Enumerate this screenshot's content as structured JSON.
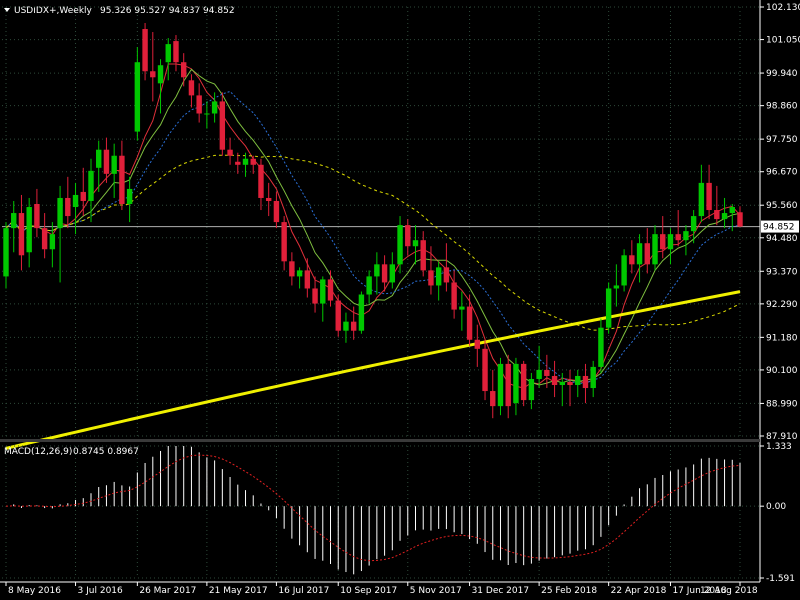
{
  "header": {
    "symbol": "USDIDX+,Weekly",
    "ohlc": "95.326 95.527 94.837 94.852"
  },
  "macd_header": {
    "label": "MACD(12,26,9)",
    "values": "0.8745 0.8967"
  },
  "colors": {
    "background": "#000000",
    "grid": "#2e4a3a",
    "bull": "#00c800",
    "bear": "#e0203a",
    "ma_fast": "#e0303a",
    "ma_mid": "#7fbf3f",
    "ma_long": "#2a6fd6",
    "ma_slow_dashed": "#d8d800",
    "ma_200": "#f0f000",
    "price_line": "#b0b0b0",
    "macd_hist": "#ffffff",
    "macd_signal": "#e02020"
  },
  "chart_data": [
    {
      "type": "candlestick",
      "title": "USDIDX+,Weekly",
      "x_tick_labels": [
        "8 May 2016",
        "3 Jul 2016",
        "26 Mar 2017",
        "21 May 2017",
        "16 Jul 2017",
        "10 Sep 2017",
        "5 Nov 2017",
        "31 Dec 2017",
        "25 Feb 2018",
        "22 Apr 2018",
        "17 Jun 2018",
        "12 Aug 2018"
      ],
      "y_tick_labels": [
        "102.130",
        "101.050",
        "99.940",
        "98.860",
        "97.750",
        "96.670",
        "95.560",
        "94.480",
        "93.370",
        "92.290",
        "91.180",
        "90.100",
        "88.990",
        "87.910"
      ],
      "ylim": [
        87.91,
        102.13
      ],
      "current_price": 94.852,
      "current_price_label": "94.852",
      "grid": true,
      "candles": [
        {
          "o": 93.2,
          "h": 95.0,
          "l": 92.8,
          "c": 94.8
        },
        {
          "o": 94.8,
          "h": 95.7,
          "l": 94.0,
          "c": 95.3
        },
        {
          "o": 95.3,
          "h": 95.9,
          "l": 93.4,
          "c": 93.9
        },
        {
          "o": 94.0,
          "h": 95.8,
          "l": 93.5,
          "c": 95.5
        },
        {
          "o": 95.6,
          "h": 96.1,
          "l": 94.5,
          "c": 94.8
        },
        {
          "o": 94.8,
          "h": 95.3,
          "l": 93.8,
          "c": 94.1
        },
        {
          "o": 94.1,
          "h": 95.0,
          "l": 93.5,
          "c": 94.6
        },
        {
          "o": 94.8,
          "h": 96.2,
          "l": 93.0,
          "c": 95.8
        },
        {
          "o": 95.8,
          "h": 96.5,
          "l": 94.8,
          "c": 95.2
        },
        {
          "o": 95.5,
          "h": 96.3,
          "l": 94.6,
          "c": 95.9
        },
        {
          "o": 96.0,
          "h": 96.8,
          "l": 95.2,
          "c": 95.7
        },
        {
          "o": 95.7,
          "h": 97.1,
          "l": 95.0,
          "c": 96.7
        },
        {
          "o": 96.8,
          "h": 97.7,
          "l": 96.0,
          "c": 97.4
        },
        {
          "o": 97.4,
          "h": 97.8,
          "l": 96.3,
          "c": 96.6
        },
        {
          "o": 96.6,
          "h": 97.6,
          "l": 95.8,
          "c": 97.2
        },
        {
          "o": 97.2,
          "h": 97.7,
          "l": 95.4,
          "c": 95.6
        },
        {
          "o": 95.6,
          "h": 96.5,
          "l": 95.0,
          "c": 96.1
        },
        {
          "o": 98.0,
          "h": 100.8,
          "l": 97.7,
          "c": 100.3
        },
        {
          "o": 101.4,
          "h": 101.6,
          "l": 99.7,
          "c": 100.0
        },
        {
          "o": 100.0,
          "h": 101.3,
          "l": 99.0,
          "c": 99.8
        },
        {
          "o": 99.6,
          "h": 100.4,
          "l": 98.6,
          "c": 100.2
        },
        {
          "o": 100.3,
          "h": 101.1,
          "l": 99.7,
          "c": 100.9
        },
        {
          "o": 101.0,
          "h": 101.2,
          "l": 100.0,
          "c": 100.3
        },
        {
          "o": 100.3,
          "h": 100.6,
          "l": 99.5,
          "c": 99.8
        },
        {
          "o": 99.7,
          "h": 99.9,
          "l": 98.8,
          "c": 99.2
        },
        {
          "o": 99.2,
          "h": 99.6,
          "l": 98.3,
          "c": 98.6
        },
        {
          "o": 98.6,
          "h": 99.0,
          "l": 98.1,
          "c": 98.6
        },
        {
          "o": 98.6,
          "h": 99.3,
          "l": 98.3,
          "c": 99.0
        },
        {
          "o": 99.0,
          "h": 99.3,
          "l": 97.2,
          "c": 97.4
        },
        {
          "o": 97.4,
          "h": 97.8,
          "l": 96.9,
          "c": 97.2
        },
        {
          "o": 97.0,
          "h": 97.3,
          "l": 96.6,
          "c": 96.9
        },
        {
          "o": 96.9,
          "h": 97.3,
          "l": 96.5,
          "c": 97.1
        },
        {
          "o": 97.1,
          "h": 97.2,
          "l": 96.6,
          "c": 96.9
        },
        {
          "o": 96.9,
          "h": 97.1,
          "l": 95.4,
          "c": 95.8
        },
        {
          "o": 95.8,
          "h": 96.3,
          "l": 95.2,
          "c": 95.7
        },
        {
          "o": 95.7,
          "h": 96.0,
          "l": 94.8,
          "c": 95.0
        },
        {
          "o": 95.0,
          "h": 95.2,
          "l": 93.4,
          "c": 93.7
        },
        {
          "o": 93.7,
          "h": 94.0,
          "l": 92.9,
          "c": 93.2
        },
        {
          "o": 93.2,
          "h": 93.5,
          "l": 92.8,
          "c": 93.4
        },
        {
          "o": 93.4,
          "h": 93.8,
          "l": 92.5,
          "c": 92.8
        },
        {
          "o": 92.8,
          "h": 93.2,
          "l": 92.0,
          "c": 92.3
        },
        {
          "o": 92.3,
          "h": 93.2,
          "l": 91.7,
          "c": 93.1
        },
        {
          "o": 93.1,
          "h": 93.4,
          "l": 92.2,
          "c": 92.4
        },
        {
          "o": 92.4,
          "h": 92.6,
          "l": 91.2,
          "c": 91.4
        },
        {
          "o": 91.4,
          "h": 92.0,
          "l": 91.0,
          "c": 91.7
        },
        {
          "o": 91.7,
          "h": 92.2,
          "l": 91.1,
          "c": 91.4
        },
        {
          "o": 91.4,
          "h": 92.7,
          "l": 91.3,
          "c": 92.6
        },
        {
          "o": 92.6,
          "h": 93.4,
          "l": 92.3,
          "c": 93.2
        },
        {
          "o": 93.2,
          "h": 94.0,
          "l": 92.6,
          "c": 93.6
        },
        {
          "o": 93.6,
          "h": 93.9,
          "l": 92.7,
          "c": 93.0
        },
        {
          "o": 93.0,
          "h": 94.0,
          "l": 92.8,
          "c": 93.6
        },
        {
          "o": 93.6,
          "h": 95.2,
          "l": 93.3,
          "c": 94.9
        },
        {
          "o": 94.9,
          "h": 95.1,
          "l": 93.9,
          "c": 94.2
        },
        {
          "o": 94.2,
          "h": 94.9,
          "l": 93.6,
          "c": 94.4
        },
        {
          "o": 94.4,
          "h": 94.7,
          "l": 93.2,
          "c": 93.4
        },
        {
          "o": 93.4,
          "h": 94.2,
          "l": 92.6,
          "c": 92.9
        },
        {
          "o": 92.9,
          "h": 93.7,
          "l": 92.4,
          "c": 93.5
        },
        {
          "o": 93.5,
          "h": 94.3,
          "l": 92.7,
          "c": 93.0
        },
        {
          "o": 93.0,
          "h": 93.4,
          "l": 91.8,
          "c": 92.1
        },
        {
          "o": 92.1,
          "h": 92.7,
          "l": 91.4,
          "c": 92.2
        },
        {
          "o": 92.2,
          "h": 92.6,
          "l": 90.9,
          "c": 91.1
        },
        {
          "o": 91.1,
          "h": 91.6,
          "l": 90.2,
          "c": 90.8
        },
        {
          "o": 90.8,
          "h": 91.1,
          "l": 89.1,
          "c": 89.4
        },
        {
          "o": 89.4,
          "h": 90.1,
          "l": 88.5,
          "c": 88.9
        },
        {
          "o": 88.9,
          "h": 90.5,
          "l": 88.6,
          "c": 90.3
        },
        {
          "o": 90.3,
          "h": 90.6,
          "l": 88.5,
          "c": 88.9
        },
        {
          "o": 89.0,
          "h": 90.5,
          "l": 88.6,
          "c": 90.3
        },
        {
          "o": 90.3,
          "h": 90.4,
          "l": 88.9,
          "c": 89.1
        },
        {
          "o": 89.1,
          "h": 90.0,
          "l": 88.8,
          "c": 89.8
        },
        {
          "o": 89.8,
          "h": 90.9,
          "l": 89.5,
          "c": 90.1
        },
        {
          "o": 90.1,
          "h": 90.6,
          "l": 89.5,
          "c": 89.9
        },
        {
          "o": 89.9,
          "h": 90.4,
          "l": 89.2,
          "c": 89.6
        },
        {
          "o": 89.6,
          "h": 90.0,
          "l": 88.9,
          "c": 89.7
        },
        {
          "o": 89.7,
          "h": 90.1,
          "l": 88.9,
          "c": 89.6
        },
        {
          "o": 89.6,
          "h": 90.1,
          "l": 89.2,
          "c": 89.9
        },
        {
          "o": 89.9,
          "h": 90.3,
          "l": 89.0,
          "c": 89.5
        },
        {
          "o": 89.5,
          "h": 90.4,
          "l": 89.2,
          "c": 90.2
        },
        {
          "o": 90.2,
          "h": 91.8,
          "l": 90.0,
          "c": 91.5
        },
        {
          "o": 91.5,
          "h": 93.0,
          "l": 91.3,
          "c": 92.8
        },
        {
          "o": 92.8,
          "h": 93.6,
          "l": 92.2,
          "c": 92.9
        },
        {
          "o": 92.9,
          "h": 94.1,
          "l": 92.7,
          "c": 93.9
        },
        {
          "o": 93.9,
          "h": 94.4,
          "l": 93.3,
          "c": 93.6
        },
        {
          "o": 93.6,
          "h": 94.6,
          "l": 93.0,
          "c": 94.3
        },
        {
          "o": 94.3,
          "h": 94.8,
          "l": 93.3,
          "c": 93.6
        },
        {
          "o": 93.6,
          "h": 94.9,
          "l": 93.4,
          "c": 94.6
        },
        {
          "o": 94.6,
          "h": 95.2,
          "l": 93.8,
          "c": 94.1
        },
        {
          "o": 94.1,
          "h": 94.8,
          "l": 93.6,
          "c": 94.6
        },
        {
          "o": 94.6,
          "h": 95.4,
          "l": 94.2,
          "c": 94.4
        },
        {
          "o": 94.4,
          "h": 94.9,
          "l": 93.9,
          "c": 94.7
        },
        {
          "o": 94.7,
          "h": 95.4,
          "l": 94.3,
          "c": 95.2
        },
        {
          "o": 95.2,
          "h": 96.9,
          "l": 95.0,
          "c": 96.3
        },
        {
          "o": 96.3,
          "h": 96.9,
          "l": 95.1,
          "c": 95.4
        },
        {
          "o": 95.4,
          "h": 96.2,
          "l": 94.9,
          "c": 95.1
        },
        {
          "o": 95.1,
          "h": 95.8,
          "l": 94.8,
          "c": 95.3
        },
        {
          "o": 95.3,
          "h": 95.6,
          "l": 94.7,
          "c": 95.5
        },
        {
          "o": 95.326,
          "h": 95.527,
          "l": 94.837,
          "c": 94.852
        }
      ]
    },
    {
      "type": "macd",
      "label": "MACD(12,26,9)",
      "y_tick_labels": [
        "1.333",
        "0.00",
        "-1.591"
      ],
      "ylim": [
        -1.591,
        1.333
      ],
      "macd_last": 0.8745,
      "signal_last": 0.8967
    }
  ]
}
